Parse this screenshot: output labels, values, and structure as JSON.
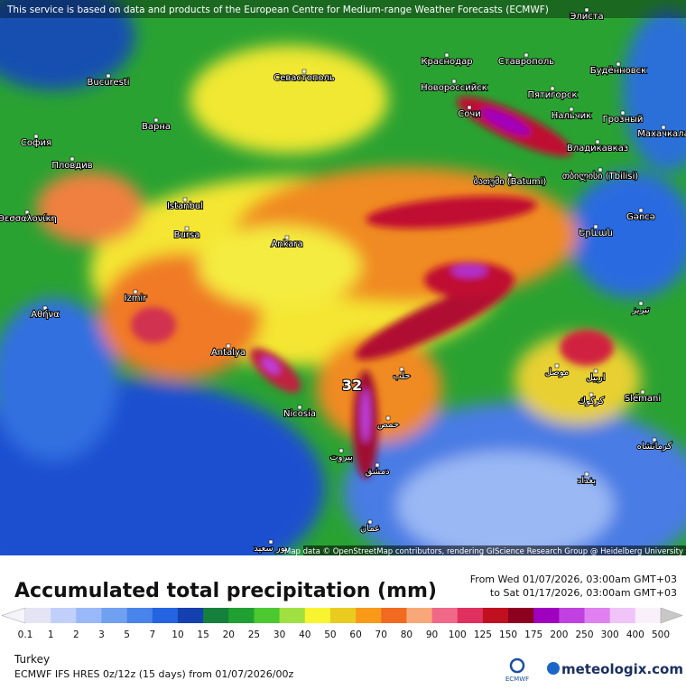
{
  "header": {
    "credit": "This service is based on data and products of the European Centre for Medium-range Weather Forecasts (ECMWF)"
  },
  "map": {
    "cities": [
      "Элиста",
      "Bucuresti",
      "Варна",
      "София",
      "Пловдив",
      "Θεσσαλονίκη",
      "Αθήνα",
      "Istanbul",
      "Bursa",
      "Izmir",
      "Antalya",
      "Ankara",
      "Nicosia",
      "Севастополь",
      "Краснодар",
      "Ставрополь",
      "Новороссийск",
      "Сочи",
      "Пятигорск",
      "Нальчик",
      "Будённовск",
      "Грозный",
      "Владикавказ",
      "Махачкала",
      "ბათუმი (Batumi)",
      "თბილისი (Tbilisi)",
      "Gəncə",
      "Երևան",
      "Slémani",
      "موصل",
      "اربيل",
      "كركوك",
      "بيروت",
      "دمشق",
      "حمص",
      "بغداد",
      "كرمانشاه",
      "عمان",
      "بور سعيد",
      "تبريز",
      "حلب"
    ],
    "max_label": "32",
    "attribution": "Map data © OpenStreetMap contributors, rendering GIScience Research Group @ Heidelberg University"
  },
  "panel": {
    "title": "Accumulated total precipitation (mm)",
    "from": "From Wed 01/07/2026, 03:00am GMT+03",
    "to": "to Sat 01/17/2026, 03:00am GMT+03",
    "region": "Turkey",
    "model": "ECMWF IFS HRES 0z/12z (15 days) from 01/07/2026/00z",
    "ecmwf": "ECMWF",
    "brand": "meteologix.com"
  },
  "colorbar": {
    "labels": [
      "0.1",
      "1",
      "2",
      "3",
      "5",
      "7",
      "10",
      "15",
      "20",
      "25",
      "30",
      "40",
      "50",
      "60",
      "70",
      "80",
      "90",
      "100",
      "125",
      "150",
      "175",
      "200",
      "250",
      "300",
      "400",
      "500"
    ],
    "colors": [
      "#e4e4f4",
      "#c0d0fa",
      "#98b8f8",
      "#70a0f0",
      "#4884ea",
      "#2464e0",
      "#1440b0",
      "#14803c",
      "#20a030",
      "#4cc830",
      "#a0e040",
      "#f8f430",
      "#e8cc20",
      "#f89a18",
      "#f06a20",
      "#f8a878",
      "#f06888",
      "#e03060",
      "#c01020",
      "#8c0020",
      "#a000c0",
      "#c040e0",
      "#e080f0",
      "#f0c4f8",
      "#faf0fa",
      "#c8c8c8"
    ]
  }
}
